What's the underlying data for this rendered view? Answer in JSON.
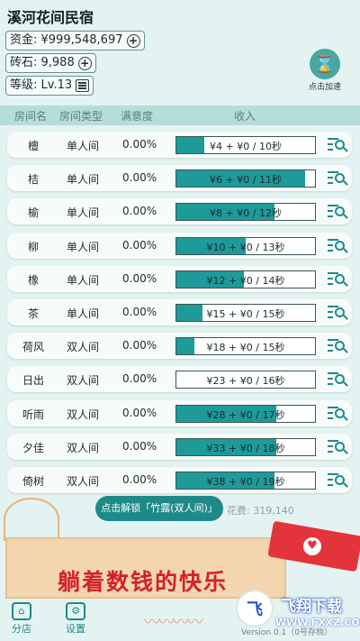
{
  "app": {
    "title": "溪河花间民宿"
  },
  "stats": {
    "money_label": "资金: ¥999,548,697",
    "bricks_label": "砖石: 9,988",
    "level_label": "等级: Lv.13",
    "plus_glyph": "+"
  },
  "accelerate": {
    "label": "点击加速"
  },
  "table": {
    "headers": [
      "房间名",
      "房间类型",
      "满意度",
      "收入"
    ],
    "rows": [
      {
        "name": "檀",
        "type": "单人间",
        "satisfaction": "0.00%",
        "income": "¥4 + ¥0 / 10秒",
        "progress": 0.2
      },
      {
        "name": "桔",
        "type": "单人间",
        "satisfaction": "0.00%",
        "income": "¥6 + ¥0 / 11秒",
        "progress": 0.93
      },
      {
        "name": "榆",
        "type": "单人间",
        "satisfaction": "0.00%",
        "income": "¥8 + ¥0 / 12秒",
        "progress": 0.71
      },
      {
        "name": "柳",
        "type": "单人间",
        "satisfaction": "0.00%",
        "income": "¥10 + ¥0 / 13秒",
        "progress": 0.5
      },
      {
        "name": "橡",
        "type": "单人间",
        "satisfaction": "0.00%",
        "income": "¥12 + ¥0 / 14秒",
        "progress": 0.49
      },
      {
        "name": "茶",
        "type": "单人间",
        "satisfaction": "0.00%",
        "income": "¥15 + ¥0 / 15秒",
        "progress": 0.19
      },
      {
        "name": "荷风",
        "type": "双人间",
        "satisfaction": "0.00%",
        "income": "¥18 + ¥0 / 15秒",
        "progress": 0.13
      },
      {
        "name": "日出",
        "type": "双人间",
        "satisfaction": "0.00%",
        "income": "¥23 + ¥0 / 16秒",
        "progress": 0.0
      },
      {
        "name": "听雨",
        "type": "双人间",
        "satisfaction": "0.00%",
        "income": "¥28 + ¥0 / 17秒",
        "progress": 0.72
      },
      {
        "name": "夕佳",
        "type": "双人间",
        "satisfaction": "0.00%",
        "income": "¥33 + ¥0 / 18秒",
        "progress": 0.72
      },
      {
        "name": "倚树",
        "type": "双人间",
        "satisfaction": "0.00%",
        "income": "¥38 + ¥0 / 19秒",
        "progress": 0.71
      }
    ]
  },
  "unlock": {
    "label": "点击解锁「竹露(双人间)」",
    "cost": "花费: 319,140"
  },
  "banner": {
    "text": "躺着数钱的快乐"
  },
  "watermark": {
    "logo_glyph": "飞",
    "title": "飞翔下载",
    "url": "WWW.FXXZ.COM"
  },
  "footer": {
    "version": "Version 0.1（0号存档）",
    "shop_label": "分店",
    "settings_label": "设置"
  },
  "colors": {
    "accent": "#1e9a9a",
    "background": "#e3f3f1",
    "banner_red": "#d3202a"
  }
}
